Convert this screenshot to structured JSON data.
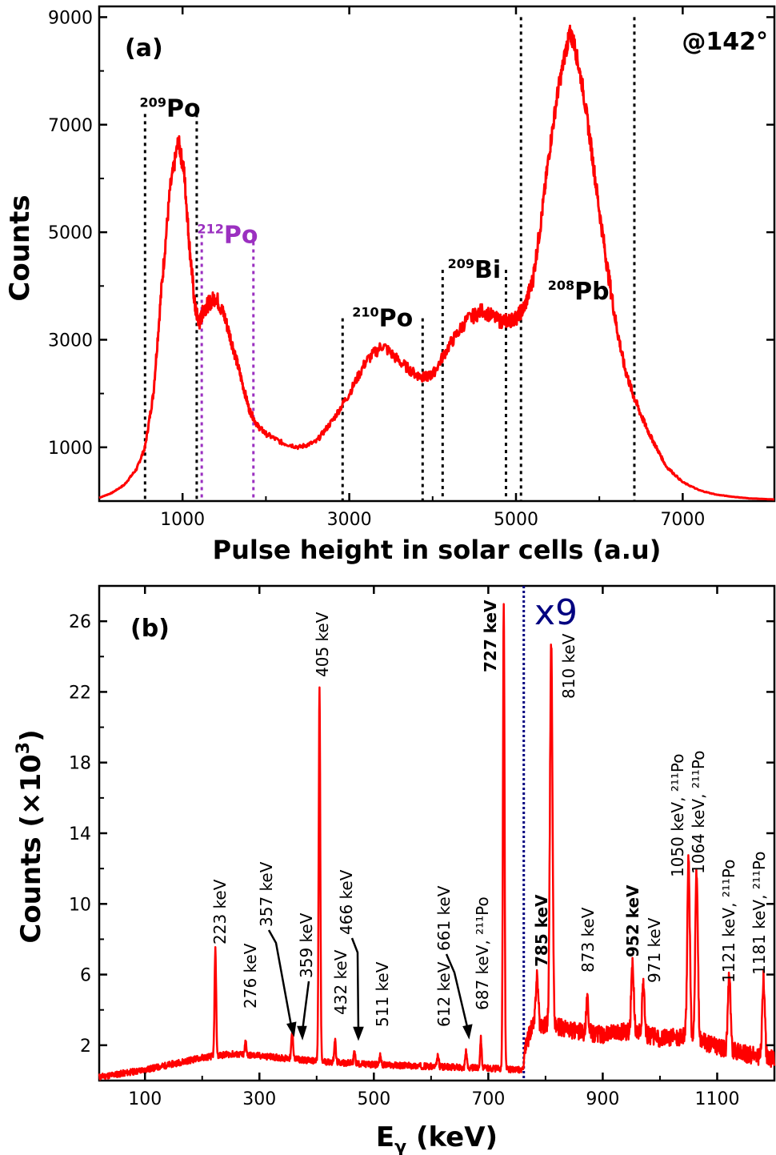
{
  "chart_data": [
    {
      "type": "line",
      "panel_label": "(a)",
      "angle_label": "@142°",
      "xlabel": "Pulse height in solar cells (a.u)",
      "ylabel": "Counts",
      "xlim": [
        0,
        8100
      ],
      "ylim": [
        0,
        9200
      ],
      "xticks": [
        1000,
        3000,
        5000,
        7000
      ],
      "yticks": [
        1000,
        3000,
        5000,
        7000,
        9000
      ],
      "series_color": "#ff0000",
      "x": [
        0,
        150,
        300,
        450,
        550,
        650,
        750,
        850,
        950,
        1020,
        1080,
        1150,
        1200,
        1250,
        1300,
        1400,
        1500,
        1600,
        1700,
        1800,
        1900,
        2000,
        2200,
        2400,
        2600,
        2800,
        3000,
        3200,
        3400,
        3600,
        3800,
        3900,
        4000,
        4200,
        4400,
        4600,
        4800,
        4900,
        5000,
        5100,
        5200,
        5300,
        5400,
        5500,
        5600,
        5650,
        5700,
        5800,
        5900,
        6000,
        6100,
        6200,
        6300,
        6400,
        6500,
        6600,
        6700,
        6800,
        7000,
        7200,
        7400,
        7600,
        7800,
        8100
      ],
      "y": [
        60,
        150,
        300,
        600,
        1000,
        2000,
        4000,
        5800,
        6700,
        6100,
        4800,
        3600,
        3300,
        3550,
        3650,
        3800,
        3450,
        2900,
        2300,
        1700,
        1400,
        1250,
        1080,
        1000,
        1100,
        1500,
        2000,
        2600,
        2900,
        2600,
        2350,
        2300,
        2350,
        2900,
        3350,
        3550,
        3350,
        3350,
        3400,
        3600,
        4100,
        5200,
        6500,
        7600,
        8400,
        8700,
        8500,
        7700,
        6600,
        5400,
        4300,
        3300,
        2500,
        2000,
        1600,
        1250,
        950,
        650,
        350,
        200,
        120,
        80,
        50,
        30
      ],
      "markers": [
        {
          "label": "209Po",
          "sup": "209",
          "base": "Po",
          "color": "#000000",
          "x": [
            550,
            1170
          ],
          "ytop": 7200,
          "text_x": 850,
          "text_y": 7300
        },
        {
          "label": "212Po",
          "sup": "212",
          "base": "Po",
          "color": "#9b30c0",
          "x": [
            1230,
            1850
          ],
          "ytop": 4950,
          "text_x": 1540,
          "text_y": 4950
        },
        {
          "label": "210Po",
          "sup": "210",
          "base": "Po",
          "color": "#000000",
          "x": [
            2920,
            3880
          ],
          "ytop": 3400,
          "text_x": 3400,
          "text_y": 3400
        },
        {
          "label": "209Bi",
          "sup": "209",
          "base": "Bi",
          "color": "#000000",
          "x": [
            4120,
            4880
          ],
          "ytop": 4300,
          "text_x": 4500,
          "text_y": 4300
        },
        {
          "label": "208Pb",
          "sup": "208",
          "base": "Pb",
          "color": "#000000",
          "x": [
            5060,
            6420
          ],
          "ytop": 9000,
          "text_x": 5750,
          "text_y": 3900
        }
      ]
    },
    {
      "type": "line",
      "panel_label": "(b)",
      "scale_label": "x9",
      "xlabel_main": "E",
      "xlabel_sub": "γ",
      "xlabel_rest": " (keV)",
      "ylabel": "Counts (×10",
      "ylabel_sup": "3",
      "ylabel_end": ")",
      "xlim": [
        20,
        1200
      ],
      "ylim": [
        0,
        28
      ],
      "xticks": [
        100,
        300,
        500,
        700,
        900,
        1100
      ],
      "yticks": [
        2,
        6,
        10,
        14,
        18,
        22,
        26
      ],
      "divider_x": 762,
      "divider_color": "#000080",
      "series_color": "#ff0000",
      "baseline": [
        [
          20,
          0.2
        ],
        [
          100,
          0.6
        ],
        [
          200,
          1.3
        ],
        [
          250,
          1.5
        ],
        [
          300,
          1.4
        ],
        [
          400,
          1.1
        ],
        [
          500,
          0.9
        ],
        [
          600,
          0.8
        ],
        [
          700,
          0.7
        ],
        [
          761,
          0.6
        ],
        [
          763,
          1.6
        ],
        [
          775,
          3.0
        ],
        [
          800,
          3.2
        ],
        [
          850,
          2.8
        ],
        [
          900,
          2.6
        ],
        [
          950,
          2.8
        ],
        [
          1000,
          2.4
        ],
        [
          1050,
          2.5
        ],
        [
          1100,
          1.9
        ],
        [
          1150,
          1.5
        ],
        [
          1200,
          1.2
        ]
      ],
      "peaks": [
        {
          "e": 223,
          "h": 7.4,
          "label": "223 keV",
          "color": "#000000"
        },
        {
          "e": 276,
          "h": 2.2,
          "label": "276 keV",
          "color": "#000000"
        },
        {
          "e": 357,
          "h": 2.5,
          "label": "357 keV",
          "color": "#000000"
        },
        {
          "e": 359,
          "h": 1.6,
          "label": "359 keV",
          "color": "#000000"
        },
        {
          "e": 405,
          "h": 22.2,
          "label": "405 keV",
          "color": "#000000"
        },
        {
          "e": 432,
          "h": 2.3,
          "label": "432 keV",
          "color": "#000000"
        },
        {
          "e": 466,
          "h": 1.6,
          "label": "466 keV",
          "color": "#000000"
        },
        {
          "e": 511,
          "h": 1.5,
          "label": "511 keV",
          "color": "#000000"
        },
        {
          "e": 612,
          "h": 1.4,
          "label": "612 keV",
          "color": "#000000"
        },
        {
          "e": 661,
          "h": 1.7,
          "label": "661 keV",
          "color": "#000000"
        },
        {
          "e": 687,
          "h": 2.4,
          "label": "687 keV, ²¹¹Po",
          "color": "#000000"
        },
        {
          "e": 727,
          "h": 27.0,
          "label": "727 keV",
          "color": "#0a7a0a",
          "bold": true
        },
        {
          "e": 785,
          "h": 6.0,
          "label": "785 keV",
          "color": "#1010cc",
          "bold": true
        },
        {
          "e": 810,
          "h": 24.8,
          "label": "810 keV",
          "color": "#000000"
        },
        {
          "e": 873,
          "h": 4.5,
          "label": "873 keV",
          "color": "#000000"
        },
        {
          "e": 952,
          "h": 6.6,
          "label": "952 keV",
          "color": "#1010cc",
          "bold": true
        },
        {
          "e": 971,
          "h": 5.4,
          "label": "971 keV",
          "color": "#000000"
        },
        {
          "e": 1050,
          "h": 12.6,
          "label": "1050 keV, ²¹¹Po",
          "color": "#000000"
        },
        {
          "e": 1064,
          "h": 11.8,
          "label": "1064 keV, ²¹¹Po",
          "color": "#000000"
        },
        {
          "e": 1121,
          "h": 6.2,
          "label": "1121 keV, ²¹¹Po",
          "color": "#000000"
        },
        {
          "e": 1181,
          "h": 5.8,
          "label": "1181 keV, ²¹¹Po",
          "color": "#000000"
        }
      ]
    }
  ]
}
